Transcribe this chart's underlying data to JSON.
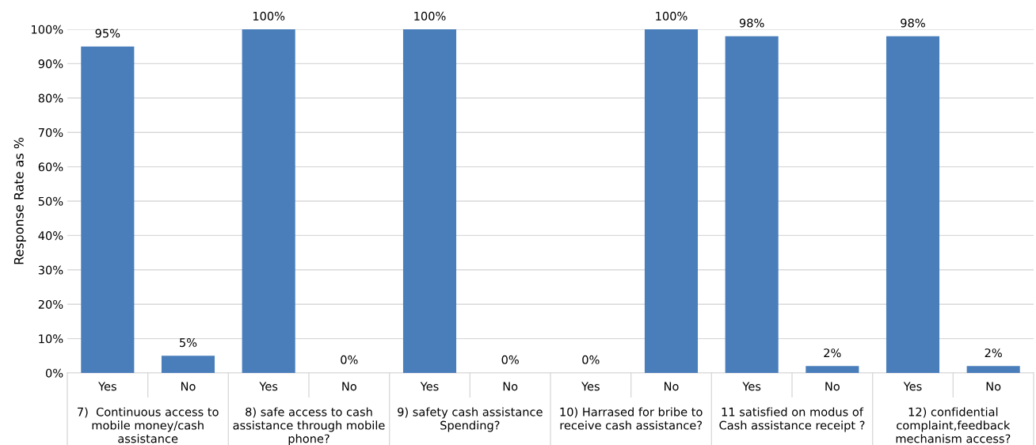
{
  "chart_data": {
    "type": "bar",
    "ylabel": "Response Rate as %",
    "categories": [
      "Yes",
      "No",
      "Yes",
      "No",
      "Yes",
      "No",
      "Yes",
      "No",
      "Yes",
      "No",
      "Yes",
      "No"
    ],
    "values": [
      95,
      5,
      100,
      0,
      100,
      0,
      0,
      100,
      98,
      2,
      98,
      2
    ],
    "color": "#4a7ebb",
    "value_labels": [
      "95%",
      "5%",
      "100%",
      "0%",
      "100%",
      "0%",
      "0%",
      "100%",
      "98%",
      "2%",
      "98%",
      "2%"
    ],
    "ylim": [
      0,
      100
    ],
    "yticks": [
      {
        "value": 0,
        "label": "0%"
      },
      {
        "value": 10,
        "label": "10%"
      },
      {
        "value": 20,
        "label": "20%"
      },
      {
        "value": 30,
        "label": "30%"
      },
      {
        "value": 40,
        "label": "40%"
      },
      {
        "value": 50,
        "label": "50%"
      },
      {
        "value": 60,
        "label": "60%"
      },
      {
        "value": 70,
        "label": "70%"
      },
      {
        "value": 80,
        "label": "80%"
      },
      {
        "value": 90,
        "label": "90%"
      },
      {
        "value": 100,
        "label": "100%"
      }
    ],
    "grid": "y",
    "annotations": [
      "7)  Continuous access to\nmobile money/cash\nassistance",
      "8) safe access to cash\nassistance through mobile\nphone?",
      "9) safety cash assistance\nSpending?",
      "10) Harrased for bribe to\nreceive cash assistance?",
      "11 satisfied on modus of\nCash assistance receipt ?",
      "12) confidential\ncomplaint,feedback\nmechanism access?"
    ]
  }
}
